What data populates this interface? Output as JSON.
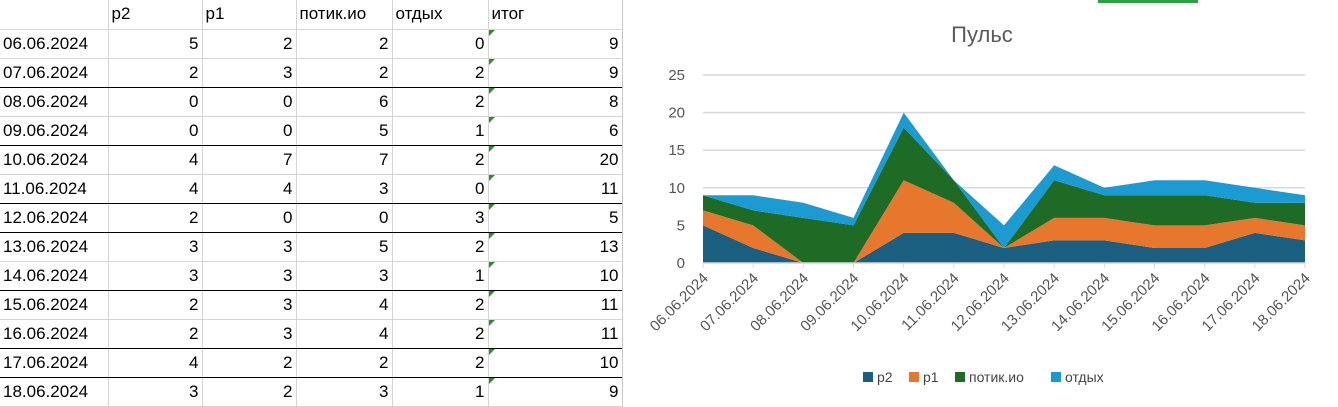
{
  "sheet": {
    "headers": [
      "",
      "р2",
      "р1",
      "потик.ио",
      "отдых",
      "итог"
    ],
    "rows": [
      [
        "06.06.2024",
        "5",
        "2",
        "2",
        "0",
        "9"
      ],
      [
        "07.06.2024",
        "2",
        "3",
        "2",
        "2",
        "9"
      ],
      [
        "08.06.2024",
        "0",
        "0",
        "6",
        "2",
        "8"
      ],
      [
        "09.06.2024",
        "0",
        "0",
        "5",
        "1",
        "6"
      ],
      [
        "10.06.2024",
        "4",
        "7",
        "7",
        "2",
        "20"
      ],
      [
        "11.06.2024",
        "4",
        "4",
        "3",
        "0",
        "11"
      ],
      [
        "12.06.2024",
        "2",
        "0",
        "0",
        "3",
        "5"
      ],
      [
        "13.06.2024",
        "3",
        "3",
        "5",
        "2",
        "13"
      ],
      [
        "14.06.2024",
        "3",
        "3",
        "3",
        "1",
        "10"
      ],
      [
        "15.06.2024",
        "2",
        "3",
        "4",
        "2",
        "11"
      ],
      [
        "16.06.2024",
        "2",
        "3",
        "4",
        "2",
        "11"
      ],
      [
        "17.06.2024",
        "4",
        "2",
        "2",
        "2",
        "10"
      ],
      [
        "18.06.2024",
        "3",
        "2",
        "3",
        "1",
        "9"
      ]
    ]
  },
  "chart_data": {
    "type": "area",
    "stacked": true,
    "title": "Пульс",
    "xlabel": "",
    "ylabel": "",
    "ylim": [
      0,
      25
    ],
    "yticks": [
      0,
      5,
      10,
      15,
      20,
      25
    ],
    "grid": true,
    "legend_position": "bottom",
    "categories": [
      "06.06.2024",
      "07.06.2024",
      "08.06.2024",
      "09.06.2024",
      "10.06.2024",
      "11.06.2024",
      "12.06.2024",
      "13.06.2024",
      "14.06.2024",
      "15.06.2024",
      "16.06.2024",
      "17.06.2024",
      "18.06.2024"
    ],
    "series": [
      {
        "name": "р2",
        "color": "#1a5e80",
        "values": [
          5,
          2,
          0,
          0,
          4,
          4,
          2,
          3,
          3,
          2,
          2,
          4,
          3
        ]
      },
      {
        "name": "р1",
        "color": "#e8772e",
        "values": [
          2,
          3,
          0,
          0,
          7,
          4,
          0,
          3,
          3,
          3,
          3,
          2,
          2
        ]
      },
      {
        "name": "потик.ио",
        "color": "#1e6b26",
        "values": [
          2,
          2,
          6,
          5,
          7,
          3,
          0,
          5,
          3,
          4,
          4,
          2,
          3
        ]
      },
      {
        "name": "отдых",
        "color": "#1b9bd1",
        "values": [
          0,
          2,
          2,
          1,
          2,
          0,
          3,
          2,
          1,
          2,
          2,
          2,
          1
        ]
      }
    ]
  }
}
